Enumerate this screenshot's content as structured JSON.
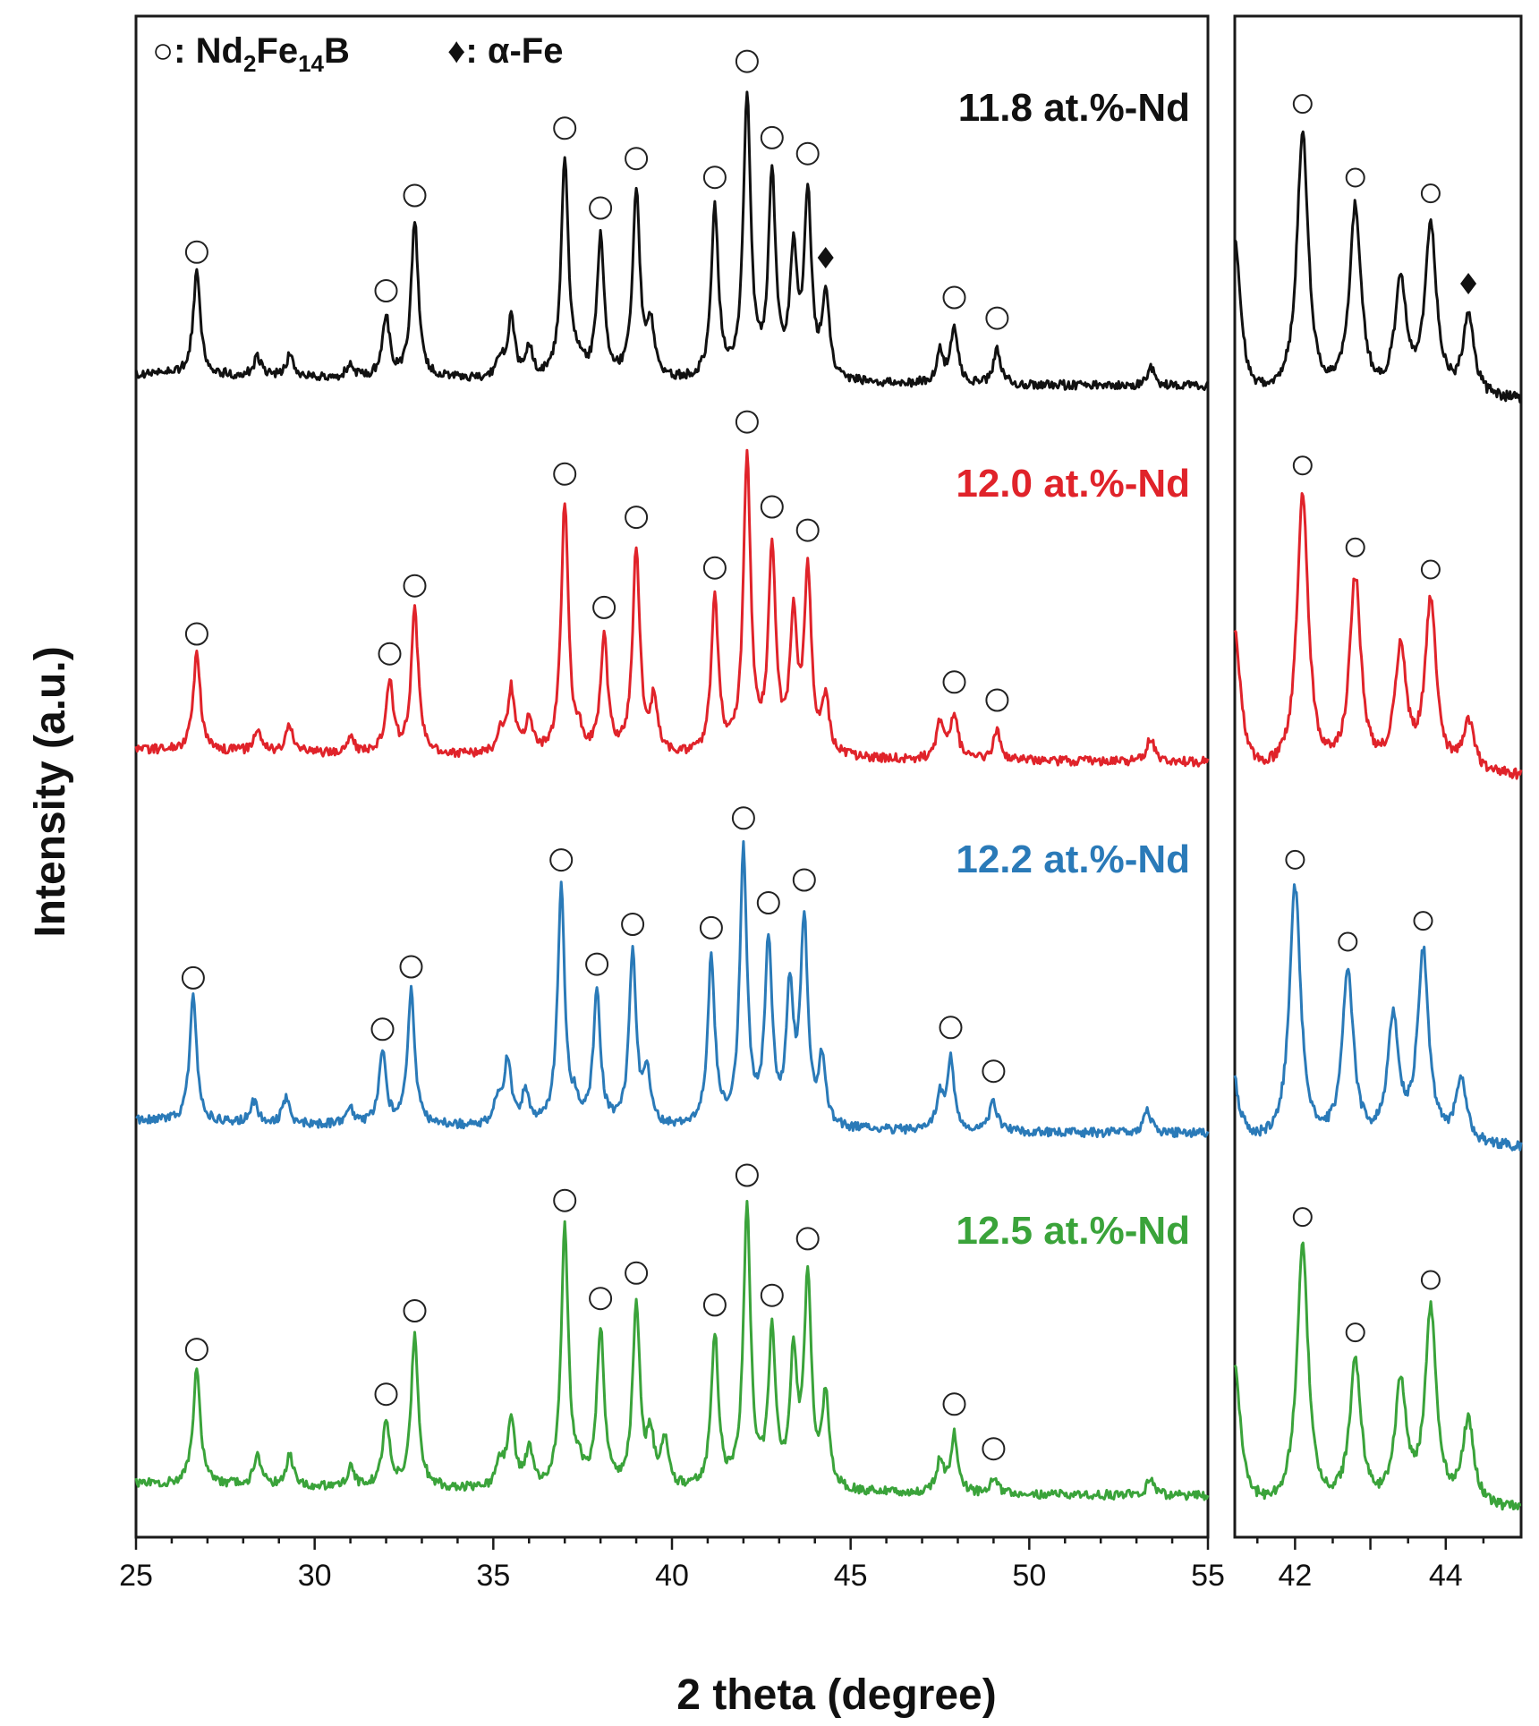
{
  "chart_data": {
    "type": "line",
    "title": "",
    "xlabel": "2 theta (degree)",
    "ylabel": "Intensity (a.u.)",
    "legend": {
      "circle_symbol": "○",
      "circle_pre": ": Nd",
      "sub1": "2",
      "mid": "Fe",
      "sub2": "14",
      "post": "B",
      "diamond_symbol": "♦",
      "diamond_label": ": α-Fe"
    },
    "main_panel": {
      "xlim": [
        25,
        55
      ],
      "xticks": [
        25,
        30,
        35,
        40,
        45,
        50,
        55
      ],
      "xtick_labels": [
        "25",
        "30",
        "35",
        "40",
        "45",
        "50",
        "55"
      ]
    },
    "inset_panel": {
      "xlim": [
        41.2,
        45.0
      ],
      "xticks": [
        42,
        43,
        44
      ],
      "xtick_labels": [
        "42",
        "44"
      ]
    },
    "series": [
      {
        "name": "11.8 at.%-Nd",
        "color": "#111111",
        "seed": 11,
        "baseline": 0.0,
        "peaks": [
          [
            26.7,
            0.34
          ],
          [
            28.4,
            0.06
          ],
          [
            29.3,
            0.07
          ],
          [
            31.0,
            0.04
          ],
          [
            32.0,
            0.2
          ],
          [
            32.8,
            0.52
          ],
          [
            35.2,
            0.06
          ],
          [
            35.5,
            0.19
          ],
          [
            36.0,
            0.1
          ],
          [
            37.0,
            0.73
          ],
          [
            37.4,
            0.05
          ],
          [
            38.0,
            0.46
          ],
          [
            39.0,
            0.62
          ],
          [
            39.4,
            0.17
          ],
          [
            41.2,
            0.56
          ],
          [
            42.1,
            0.93
          ],
          [
            42.8,
            0.66
          ],
          [
            43.4,
            0.4
          ],
          [
            43.8,
            0.6
          ],
          [
            44.3,
            0.28
          ],
          [
            47.5,
            0.1
          ],
          [
            47.9,
            0.18
          ],
          [
            49.1,
            0.12
          ],
          [
            53.4,
            0.06
          ]
        ],
        "circles": [
          26.7,
          32.0,
          32.8,
          37.0,
          38.0,
          39.0,
          41.2,
          42.1,
          42.8,
          43.8,
          47.9,
          49.1
        ],
        "diamonds": [
          44.3
        ]
      },
      {
        "name": "12.0 at.%-Nd",
        "color": "#e0232a",
        "seed": 23,
        "baseline": 0.0,
        "peaks": [
          [
            26.7,
            0.32
          ],
          [
            28.4,
            0.07
          ],
          [
            29.3,
            0.09
          ],
          [
            31.0,
            0.05
          ],
          [
            32.1,
            0.24
          ],
          [
            32.8,
            0.47
          ],
          [
            35.2,
            0.07
          ],
          [
            35.5,
            0.21
          ],
          [
            36.0,
            0.11
          ],
          [
            37.0,
            0.83
          ],
          [
            37.4,
            0.05
          ],
          [
            38.1,
            0.38
          ],
          [
            39.0,
            0.68
          ],
          [
            39.5,
            0.18
          ],
          [
            41.2,
            0.51
          ],
          [
            42.1,
            0.98
          ],
          [
            42.8,
            0.68
          ],
          [
            43.4,
            0.43
          ],
          [
            43.8,
            0.6
          ],
          [
            44.3,
            0.18
          ],
          [
            47.5,
            0.12
          ],
          [
            47.9,
            0.15
          ],
          [
            49.1,
            0.1
          ],
          [
            53.4,
            0.08
          ]
        ],
        "circles": [
          26.7,
          32.1,
          32.8,
          37.0,
          38.1,
          39.0,
          41.2,
          42.1,
          42.8,
          43.8,
          47.9,
          49.1
        ],
        "diamonds": []
      },
      {
        "name": "12.2 at.%-Nd",
        "color": "#2a7ab8",
        "seed": 37,
        "baseline": 0.0,
        "peaks": [
          [
            26.6,
            0.41
          ],
          [
            28.3,
            0.07
          ],
          [
            29.2,
            0.08
          ],
          [
            31.0,
            0.05
          ],
          [
            31.9,
            0.23
          ],
          [
            32.7,
            0.44
          ],
          [
            35.1,
            0.08
          ],
          [
            35.4,
            0.21
          ],
          [
            35.9,
            0.11
          ],
          [
            36.9,
            0.78
          ],
          [
            37.3,
            0.06
          ],
          [
            37.9,
            0.43
          ],
          [
            38.9,
            0.56
          ],
          [
            39.3,
            0.16
          ],
          [
            41.1,
            0.55
          ],
          [
            42.0,
            0.9
          ],
          [
            42.7,
            0.6
          ],
          [
            43.3,
            0.43
          ],
          [
            43.7,
            0.67
          ],
          [
            44.2,
            0.22
          ],
          [
            47.5,
            0.11
          ],
          [
            47.8,
            0.23
          ],
          [
            49.0,
            0.1
          ],
          [
            53.3,
            0.08
          ]
        ],
        "circles": [
          26.6,
          31.9,
          32.7,
          36.9,
          37.9,
          38.9,
          41.1,
          42.0,
          42.7,
          43.7,
          47.8,
          49.0
        ],
        "diamonds": []
      },
      {
        "name": "12.5 at.%-Nd",
        "color": "#3aa33a",
        "seed": 51,
        "baseline": 0.0,
        "peaks": [
          [
            26.7,
            0.38
          ],
          [
            28.4,
            0.1
          ],
          [
            29.3,
            0.1
          ],
          [
            31.0,
            0.06
          ],
          [
            32.0,
            0.22
          ],
          [
            32.8,
            0.5
          ],
          [
            35.2,
            0.08
          ],
          [
            35.5,
            0.22
          ],
          [
            36.0,
            0.12
          ],
          [
            37.0,
            0.85
          ],
          [
            37.4,
            0.06
          ],
          [
            38.0,
            0.52
          ],
          [
            39.0,
            0.6
          ],
          [
            39.4,
            0.16
          ],
          [
            39.8,
            0.15
          ],
          [
            41.2,
            0.5
          ],
          [
            42.1,
            0.92
          ],
          [
            42.8,
            0.5
          ],
          [
            43.4,
            0.42
          ],
          [
            43.8,
            0.68
          ],
          [
            44.3,
            0.3
          ],
          [
            47.5,
            0.1
          ],
          [
            47.9,
            0.19
          ],
          [
            49.0,
            0.05
          ],
          [
            53.4,
            0.06
          ]
        ],
        "circles": [
          26.7,
          32.0,
          32.8,
          37.0,
          38.0,
          39.0,
          41.2,
          42.1,
          42.8,
          43.8,
          47.9,
          49.0
        ],
        "diamonds": []
      }
    ]
  }
}
